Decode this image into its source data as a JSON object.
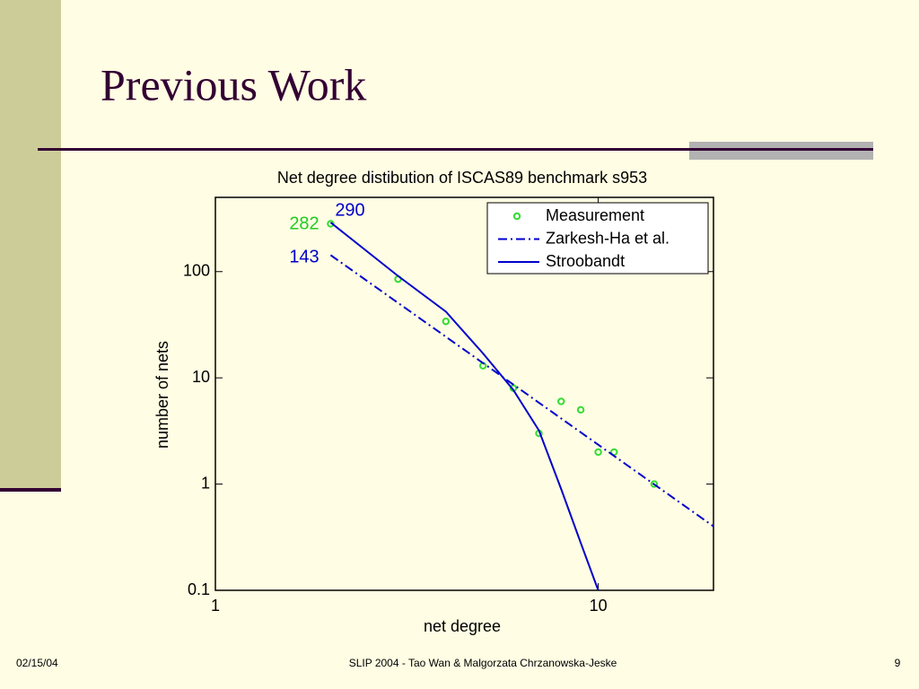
{
  "slide": {
    "title": "Previous Work",
    "date": "02/15/04",
    "footer": "SLIP 2004  - Tao Wan & Malgorzata Chrzanowska-Jeske",
    "page": "9"
  },
  "chart_data": {
    "type": "line",
    "title": "Net degree distibution of ISCAS89 benchmark s953",
    "x_label": "net degree",
    "y_label": "number of nets",
    "x_scale": "log",
    "y_scale": "log",
    "xlim": [
      1,
      20
    ],
    "ylim": [
      0.1,
      500
    ],
    "xticks": [
      1,
      10
    ],
    "yticks": [
      0.1,
      1,
      10,
      100
    ],
    "legend": "upper right",
    "series": [
      {
        "name": "Measurement",
        "type": "scatter",
        "color": "#33dd33",
        "x": [
          2,
          3,
          4,
          5,
          6,
          7,
          8,
          9,
          10,
          11,
          14
        ],
        "values": [
          282,
          85,
          34,
          13,
          8,
          3,
          6,
          5,
          2,
          2,
          1
        ]
      },
      {
        "name": "Zarkesh-Ha et al.",
        "type": "line",
        "dash": "dashdot",
        "color": "#0000cc",
        "x": [
          2,
          20
        ],
        "values": [
          143,
          0.4
        ]
      },
      {
        "name": "Stroobandt",
        "type": "line",
        "dash": "solid",
        "color": "#0000cc",
        "x": [
          2,
          3,
          4,
          5,
          6,
          7,
          8,
          9,
          10
        ],
        "values": [
          290,
          91,
          42,
          17,
          7.7,
          3.2,
          0.9,
          0.28,
          0.1
        ]
      }
    ],
    "annotations": [
      {
        "text": "290",
        "color": "#0000cc"
      },
      {
        "text": "282",
        "color": "#22cc22"
      },
      {
        "text": "143",
        "color": "#0000cc"
      }
    ]
  }
}
